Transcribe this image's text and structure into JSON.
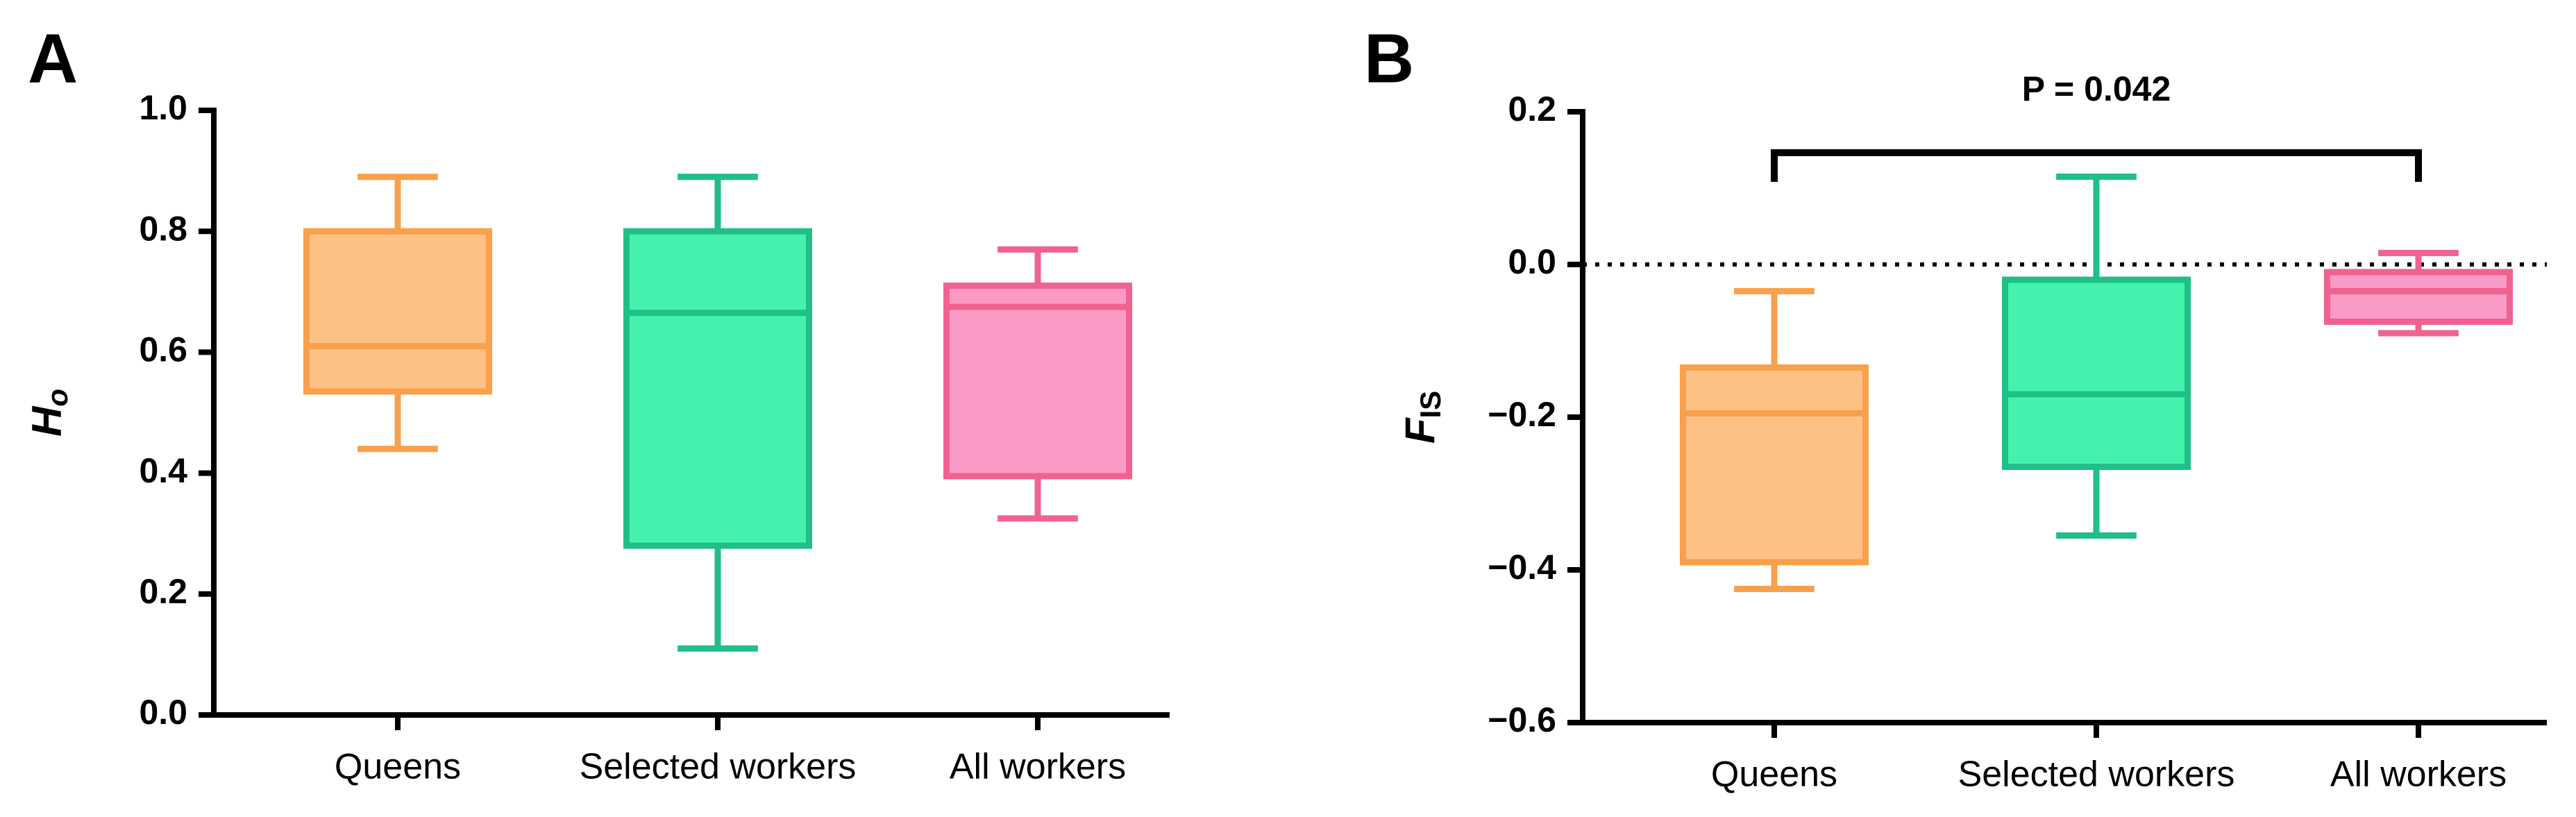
{
  "chart_data": [
    {
      "type": "box",
      "panel": "A",
      "ylabel": "H",
      "ylabel_sub": "o",
      "categories": [
        "Queens",
        "Selected workers",
        "All workers"
      ],
      "colors": [
        "#f9a04b",
        "#1fbf86",
        "#f0628f"
      ],
      "fill_colors": [
        "#fdc185",
        "#45f2ad",
        "#f99bc6"
      ],
      "boxes": [
        {
          "min": 0.44,
          "q1": 0.535,
          "median": 0.61,
          "q3": 0.8,
          "max": 0.89
        },
        {
          "min": 0.11,
          "q1": 0.28,
          "median": 0.665,
          "q3": 0.8,
          "max": 0.89
        },
        {
          "min": 0.325,
          "q1": 0.395,
          "median": 0.675,
          "q3": 0.71,
          "max": 0.77
        }
      ],
      "ylim": [
        0,
        1
      ],
      "yticks": [
        {
          "value": 0,
          "label": "0.0"
        },
        0.2,
        0.4,
        0.6,
        0.8,
        {
          "value": 1,
          "label": "1.0"
        }
      ]
    },
    {
      "type": "box",
      "panel": "B",
      "ylabel": "F",
      "ylabel_sub": "IS",
      "categories": [
        "Queens",
        "Selected workers",
        "All workers"
      ],
      "colors": [
        "#f9a04b",
        "#1fbf86",
        "#f0628f"
      ],
      "fill_colors": [
        "#fdc185",
        "#45f2ad",
        "#f99bc6"
      ],
      "boxes": [
        {
          "min": -0.425,
          "q1": -0.39,
          "median": -0.195,
          "q3": -0.135,
          "max": -0.035
        },
        {
          "min": -0.355,
          "q1": -0.265,
          "median": -0.17,
          "q3": -0.02,
          "max": 0.115
        },
        {
          "min": -0.09,
          "q1": -0.075,
          "median": -0.035,
          "q3": -0.01,
          "max": 0.015
        }
      ],
      "ylim": [
        -0.6,
        0.2
      ],
      "yticks": [
        {
          "value": -0.6,
          "label": "−0.6"
        },
        {
          "value": -0.4,
          "label": "−0.4"
        },
        {
          "value": -0.2,
          "label": "−0.2"
        },
        {
          "value": 0,
          "label": "0.0"
        },
        0.2
      ],
      "reference_line": 0,
      "annotation": "P = 0.042"
    }
  ]
}
